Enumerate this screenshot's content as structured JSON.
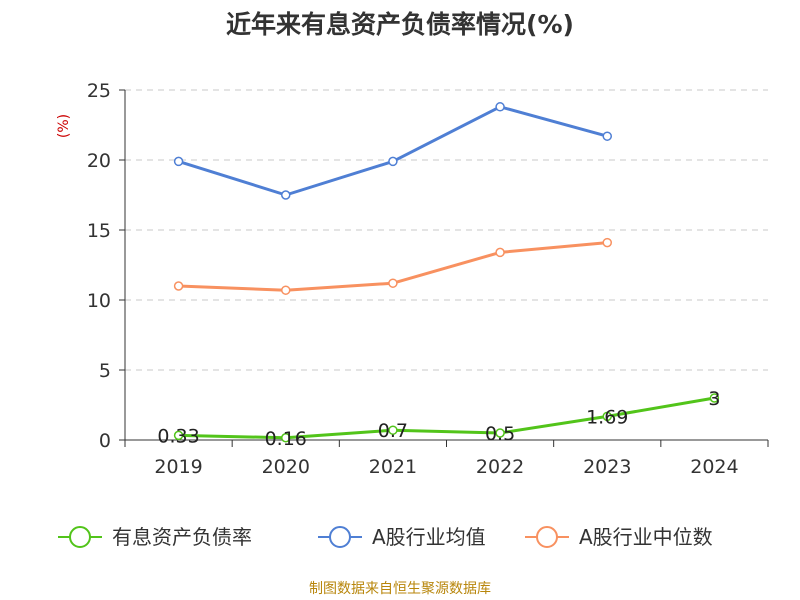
{
  "chart_data": {
    "type": "line",
    "title": "近年来有息资产负债率情况(%)",
    "ylabel": "(%)",
    "categories": [
      "2019",
      "2020",
      "2021",
      "2022",
      "2023",
      "2024"
    ],
    "ylim": [
      0,
      25
    ],
    "yticks": [
      "0",
      "5",
      "10",
      "15",
      "20",
      "25"
    ],
    "grid": true,
    "legend_position": "bottom",
    "series": [
      {
        "name": "有息资产负债率",
        "color": "#52c41a",
        "values": [
          0.33,
          0.16,
          0.7,
          0.5,
          1.69,
          3
        ],
        "data_labels": [
          "0.33",
          "0.16",
          "0.7",
          "0.5",
          "1.69",
          "3"
        ]
      },
      {
        "name": "A股行业均值",
        "color": "#4f7fd4",
        "values": [
          19.9,
          17.5,
          19.9,
          23.8,
          21.7,
          null
        ]
      },
      {
        "name": "A股行业中位数",
        "color": "#f89160",
        "values": [
          11.0,
          10.7,
          11.2,
          13.4,
          14.1,
          null
        ]
      }
    ]
  },
  "source": "制图数据来自恒生聚源数据库"
}
